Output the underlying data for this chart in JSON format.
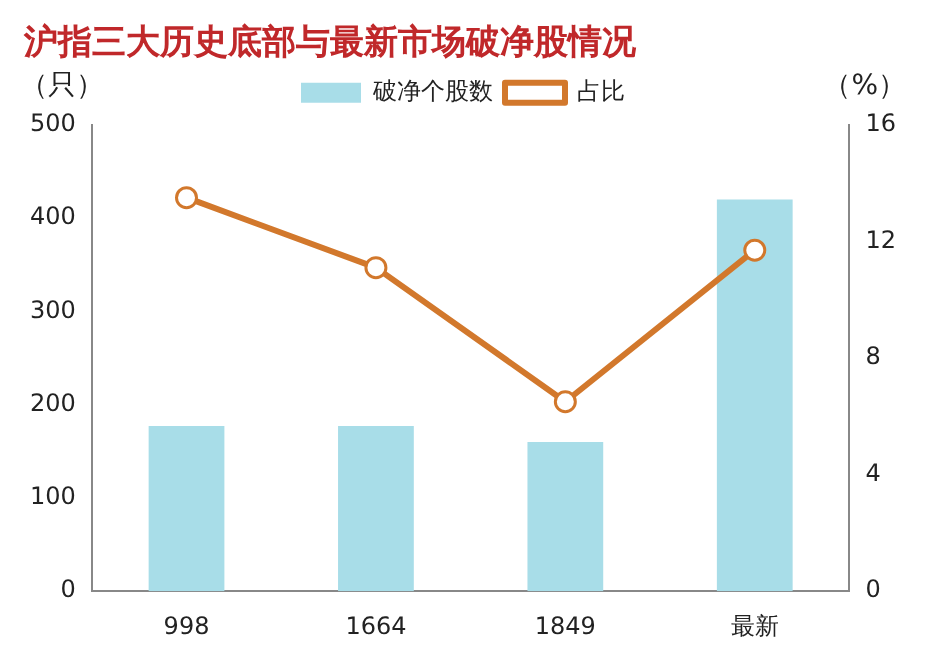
{
  "chart_data": {
    "type": "bar",
    "title": "沪指三大历史底部与最新市场破净股情况",
    "ylabel": "（只）",
    "y2label": "（%）",
    "categories": [
      "998",
      "1664",
      "1849",
      "最新"
    ],
    "series": [
      {
        "name": "破净个股数",
        "color": "#a8dde8",
        "values": [
          177,
          177,
          160,
          420
        ]
      },
      {
        "name": "占比",
        "type": "line",
        "axis": "y2",
        "color": "#d2782c",
        "marker": "circle",
        "values": [
          13.5,
          11.1,
          6.5,
          11.7
        ]
      }
    ],
    "ylim": [
      0,
      500
    ],
    "yticks": [
      0,
      100,
      200,
      300,
      400,
      500
    ],
    "y2lim": [
      0,
      16
    ],
    "y2ticks": [
      0,
      4,
      8,
      12,
      16
    ],
    "legend": "top",
    "grid": false
  }
}
